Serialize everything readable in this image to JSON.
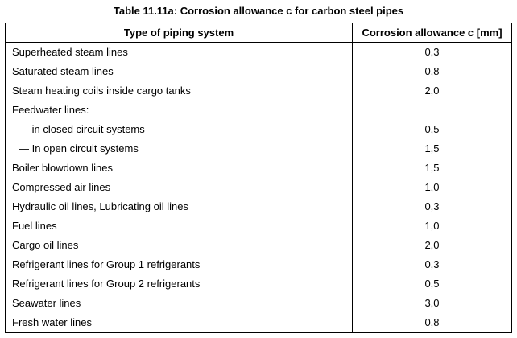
{
  "caption": "Table 11.11a: Corrosion allowance c for carbon steel pipes",
  "headers": {
    "type": "Type of piping system",
    "corrosion": "Corrosion allowance c [mm]"
  },
  "rows": [
    {
      "type": "Superheated steam lines",
      "value": "0,3",
      "indent": false
    },
    {
      "type": "Saturated steam lines",
      "value": "0,8",
      "indent": false
    },
    {
      "type": "Steam heating coils inside cargo tanks",
      "value": "2,0",
      "indent": false
    },
    {
      "type": "Feedwater lines:",
      "value": "",
      "indent": false
    },
    {
      "type": "— in closed circuit systems",
      "value": "0,5",
      "indent": true
    },
    {
      "type": "— In open circuit systems",
      "value": "1,5",
      "indent": true
    },
    {
      "type": "Boiler blowdown lines",
      "value": "1,5",
      "indent": false
    },
    {
      "type": "Compressed air lines",
      "value": "1,0",
      "indent": false
    },
    {
      "type": "Hydraulic oil lines, Lubricating oil lines",
      "value": "0,3",
      "indent": false
    },
    {
      "type": "Fuel lines",
      "value": "1,0",
      "indent": false
    },
    {
      "type": "Cargo oil lines",
      "value": "2,0",
      "indent": false
    },
    {
      "type": "Refrigerant lines for Group 1 refrigerants",
      "value": "0,3",
      "indent": false
    },
    {
      "type": "Refrigerant lines for Group 2 refrigerants",
      "value": "0,5",
      "indent": false
    },
    {
      "type": "Seawater lines",
      "value": "3,0",
      "indent": false
    },
    {
      "type": "Fresh water lines",
      "value": "0,8",
      "indent": false
    }
  ]
}
